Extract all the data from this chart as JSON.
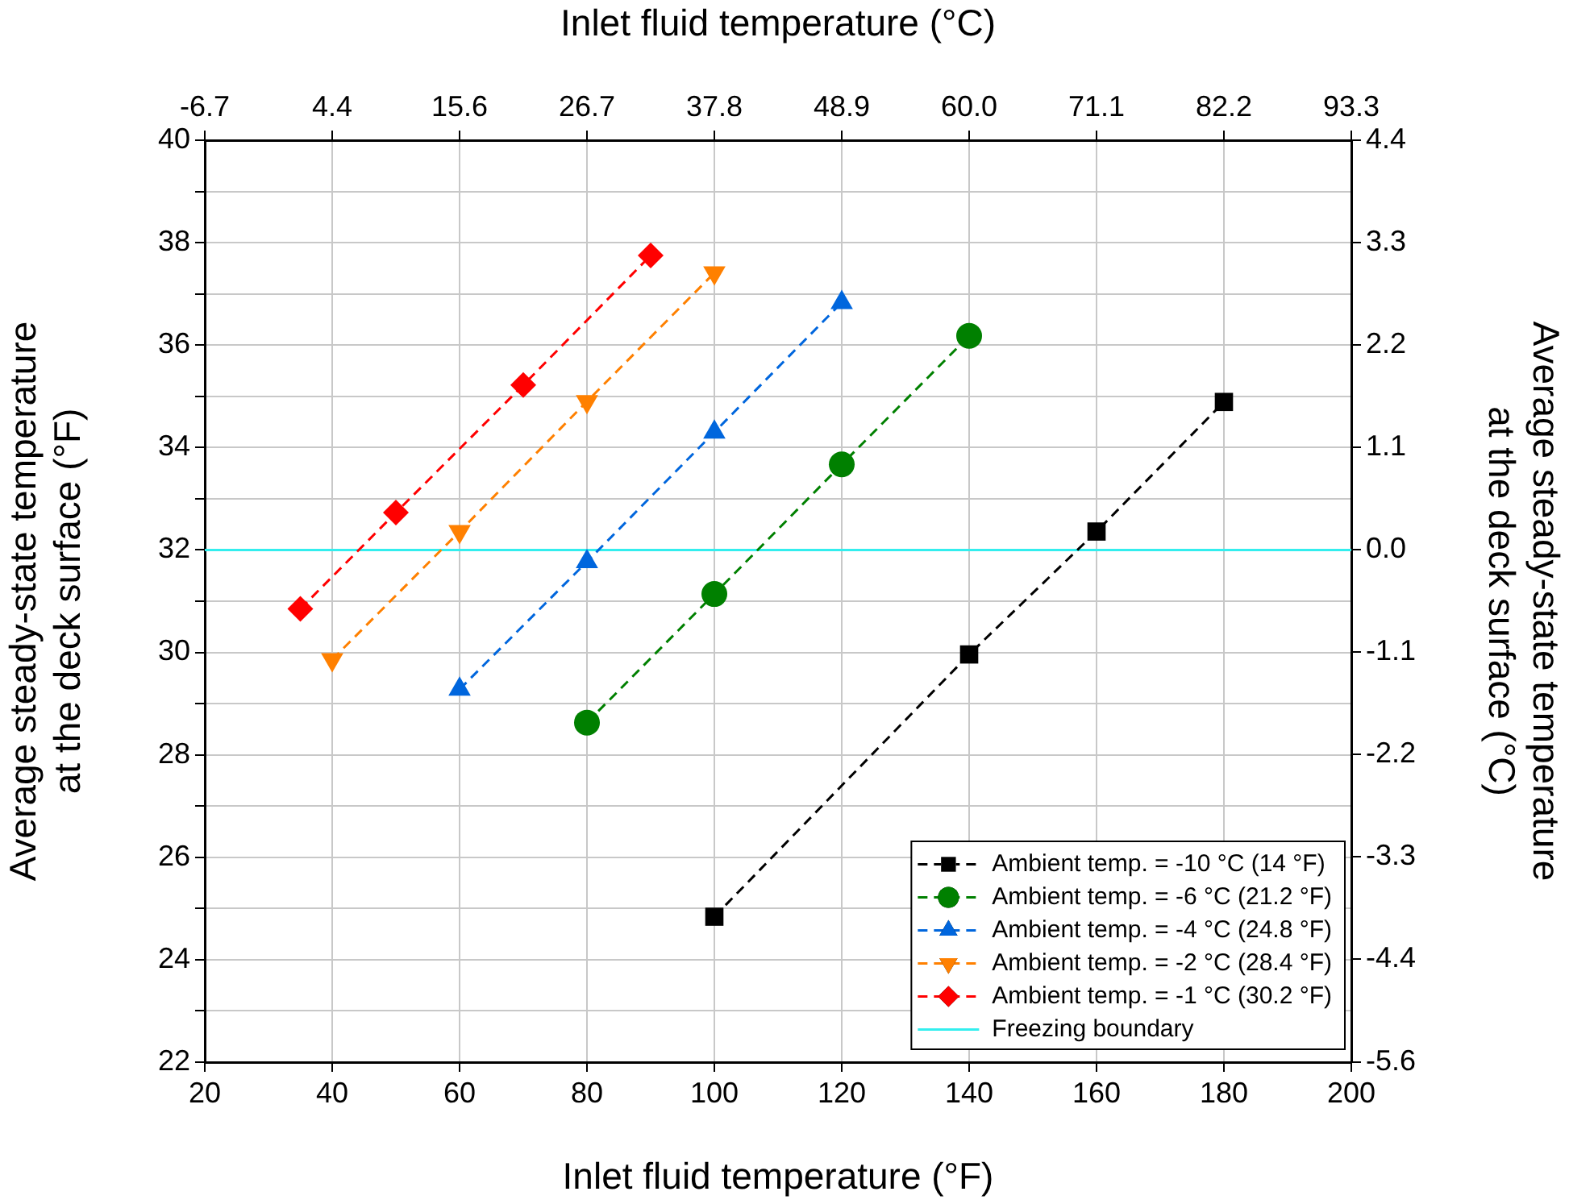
{
  "chart_data": {
    "type": "line",
    "xlabel": "Inlet fluid temperature (°F)",
    "x2label": "Inlet fluid temperature (°C)",
    "ylabel": "Average steady-state temperature\nat the deck surface (°F)",
    "y2label": "Average steady-state temperature\nat the deck surface (°C)",
    "xlim": [
      20,
      200
    ],
    "xticks": [
      20,
      40,
      60,
      80,
      100,
      120,
      140,
      160,
      180,
      200
    ],
    "x2lim": [
      -6.67,
      93.33
    ],
    "x2ticks": [
      {
        "value": -6.67,
        "label": "-6.7"
      },
      {
        "value": 4.44,
        "label": "4.4"
      },
      {
        "value": 15.56,
        "label": "15.6"
      },
      {
        "value": 26.67,
        "label": "26.7"
      },
      {
        "value": 37.78,
        "label": "37.8"
      },
      {
        "value": 48.89,
        "label": "48.9"
      },
      {
        "value": 60,
        "label": "60.0"
      },
      {
        "value": 71.11,
        "label": "71.1"
      },
      {
        "value": 82.22,
        "label": "82.2"
      },
      {
        "value": 93.33,
        "label": "93.3"
      }
    ],
    "ylim": [
      22,
      40
    ],
    "yticks": [
      22,
      {
        "value": 23,
        "label": null
      },
      24,
      {
        "value": 25,
        "label": null
      },
      26,
      {
        "value": 27,
        "label": null
      },
      28,
      {
        "value": 29,
        "label": null
      },
      30,
      {
        "value": 31,
        "label": null
      },
      32,
      {
        "value": 33,
        "label": null
      },
      34,
      {
        "value": 35,
        "label": null
      },
      36,
      {
        "value": 37,
        "label": null
      },
      38,
      {
        "value": 39,
        "label": null
      },
      40
    ],
    "y2lim": [
      -5.56,
      4.44
    ],
    "y2ticks": [
      {
        "value": -5.56,
        "label": "-5.6"
      },
      {
        "value": -4.44,
        "label": "-4.4"
      },
      {
        "value": -3.33,
        "label": "-3.3"
      },
      {
        "value": -2.22,
        "label": "-2.2"
      },
      {
        "value": -1.11,
        "label": "-1.1"
      },
      {
        "value": 0,
        "label": "0.0"
      },
      {
        "value": 1.11,
        "label": "1.1"
      },
      {
        "value": 2.22,
        "label": "2.2"
      },
      {
        "value": 3.33,
        "label": "3.3"
      },
      {
        "value": 4.44,
        "label": "4.4"
      }
    ],
    "grid": true,
    "legend": "bottom right",
    "line_style": "dashed",
    "series": [
      {
        "name": "Ambient temp. = -10 °C (14 °F)",
        "color": "#000000",
        "marker": "square",
        "x": [
          100,
          140,
          160,
          180
        ],
        "values": [
          24.84,
          29.96,
          32.36,
          34.89
        ]
      },
      {
        "name": "Ambient temp. = -6 °C (21.2 °F)",
        "color": "#008000",
        "marker": "circle",
        "x": [
          80,
          100,
          120,
          140
        ],
        "values": [
          28.63,
          31.14,
          33.67,
          36.18
        ]
      },
      {
        "name": "Ambient temp. = -4 °C (24.8 °F)",
        "color": "#0066dd",
        "marker": "triangle",
        "x": [
          60,
          80,
          100,
          120
        ],
        "values": [
          29.28,
          31.77,
          34.3,
          36.83
        ]
      },
      {
        "name": "Ambient temp. = -2 °C (28.4 °F)",
        "color": "#ff8000",
        "marker": "triangle-down",
        "x": [
          40,
          60,
          80,
          100
        ],
        "values": [
          29.86,
          32.36,
          34.9,
          37.41
        ]
      },
      {
        "name": "Ambient temp. = -1 °C (30.2 °F)",
        "color": "#ff0000",
        "marker": "diamond",
        "x": [
          35,
          50,
          70,
          90
        ],
        "values": [
          30.85,
          32.73,
          35.22,
          37.75
        ]
      }
    ],
    "ref_lines": [
      {
        "axis": "y",
        "value": 32,
        "label": "Freezing boundary",
        "color": "#33eeee",
        "line_style": "solid"
      }
    ]
  }
}
